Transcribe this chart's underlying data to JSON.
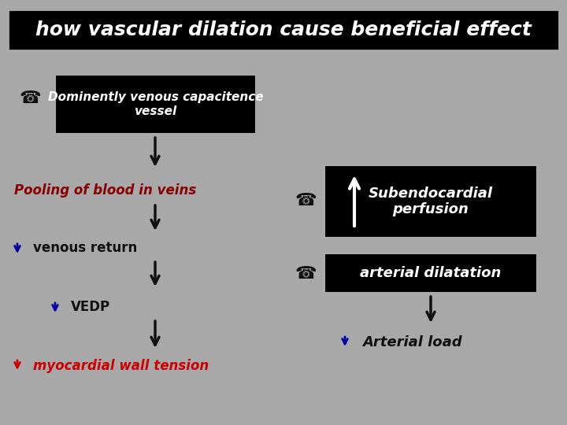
{
  "bg_color": "#a8a8a8",
  "title": "how vascular dilation cause beneficial effect",
  "title_color": "#ffffff",
  "title_bg": "#000000",
  "title_fontsize": 18,
  "box1_text": "Dominently venous capacitence\nvessel",
  "box2_text": "Subendocardial\nperfusion",
  "box3_text": "arterial dilatation",
  "label_pooling": "Pooling of blood in veins",
  "label_pooling_color": "#880000",
  "label_venous": "venous return",
  "label_venous_color": "#111111",
  "label_vedp": "VEDP",
  "label_vedp_color": "#111111",
  "label_myo": "myocardial wall tension",
  "label_myo_color": "#cc0000",
  "label_arterial_load": "Arterial load",
  "label_arterial_load_color": "#111111",
  "box_bg": "#000000",
  "box_fc": "#ffffff",
  "box_border": "#aaaaaa",
  "arrow_black": "#111111",
  "arrow_blue": "#0000aa",
  "arrow_red": "#cc0000",
  "arrow_white": "#ffffff"
}
